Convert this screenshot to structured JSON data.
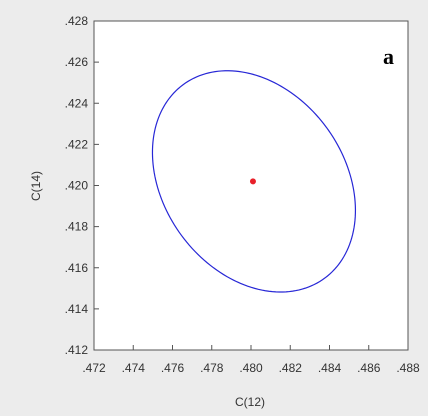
{
  "chart_data": {
    "type": "scatter",
    "panel_label": "a",
    "xlabel": "C(12)",
    "ylabel": "C(14)",
    "xlim": [
      0.472,
      0.488
    ],
    "ylim": [
      0.412,
      0.428
    ],
    "x_ticks": [
      {
        "value": 0.472,
        "label": ".472"
      },
      {
        "value": 0.474,
        "label": ".474"
      },
      {
        "value": 0.476,
        "label": ".476"
      },
      {
        "value": 0.478,
        "label": ".478"
      },
      {
        "value": 0.48,
        "label": ".480"
      },
      {
        "value": 0.482,
        "label": ".482"
      },
      {
        "value": 0.484,
        "label": ".484"
      },
      {
        "value": 0.486,
        "label": ".486"
      },
      {
        "value": 0.488,
        "label": ".488"
      }
    ],
    "y_ticks": [
      {
        "value": 0.412,
        "label": ".412"
      },
      {
        "value": 0.414,
        "label": ".414"
      },
      {
        "value": 0.416,
        "label": ".416"
      },
      {
        "value": 0.418,
        "label": ".418"
      },
      {
        "value": 0.42,
        "label": ".420"
      },
      {
        "value": 0.422,
        "label": ".422"
      },
      {
        "value": 0.424,
        "label": ".424"
      },
      {
        "value": 0.426,
        "label": ".426"
      },
      {
        "value": 0.428,
        "label": ".428"
      }
    ],
    "grid": false,
    "point": {
      "x": 0.4801,
      "y": 0.4202,
      "color": "#e8202a"
    },
    "ellipse": {
      "center": [
        0.48015,
        0.4202
      ],
      "semi_axis_1": [
        0.00387,
        -0.0045
      ],
      "semi_axis_2": [
        0.00343,
        0.00295
      ],
      "color": "#2727d6"
    }
  }
}
